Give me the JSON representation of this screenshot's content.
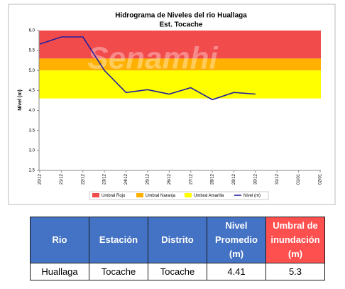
{
  "chart_data": {
    "type": "line",
    "title": "Hidrograma de Niveles del rio Huallaga",
    "subtitle": "Est. Tocache",
    "y_label": "Nivel (m)",
    "watermark": "Senamhi",
    "categories": [
      "20/12",
      "21/12",
      "22/12",
      "23/12",
      "24/12",
      "25/12",
      "26/12",
      "27/12",
      "28/12",
      "29/12",
      "30/12",
      "31/12",
      "01/01",
      "02/01"
    ],
    "series": [
      {
        "name": "Nivel (m)",
        "color": "#1f1fa0",
        "values": [
          5.66,
          5.84,
          5.84,
          5.0,
          4.45,
          4.52,
          4.41,
          4.57,
          4.27,
          4.45,
          4.41,
          null,
          null,
          null
        ]
      }
    ],
    "thresholds": [
      {
        "name": "Umbral Rojo",
        "color": "#f24b4b",
        "from": 5.3,
        "to": 6.0
      },
      {
        "name": "Umbral Naranja",
        "color": "#ffb000",
        "from": 5.0,
        "to": 5.3
      },
      {
        "name": "Umbral Amarilla",
        "color": "#ffff00",
        "from": 4.3,
        "to": 5.0
      }
    ],
    "ylim": [
      2.5,
      6.0
    ],
    "yticks": [
      2.5,
      {
        "value": 3,
        "label": "3.0"
      },
      3.5,
      {
        "value": 4,
        "label": "4.0"
      },
      4.5,
      {
        "value": 5,
        "label": "5.0"
      },
      5.5,
      {
        "value": 6,
        "label": "6.0"
      }
    ],
    "grid": false,
    "legend": "bottom"
  },
  "table": {
    "headers": [
      "Rio",
      "Estación",
      "Distrito",
      "Nivel Promedio (m)",
      "Umbral de inundación (m)"
    ],
    "rows": [
      [
        "Huallaga",
        "Tocache",
        "Tocache",
        "4.41",
        "5.3"
      ]
    ]
  }
}
